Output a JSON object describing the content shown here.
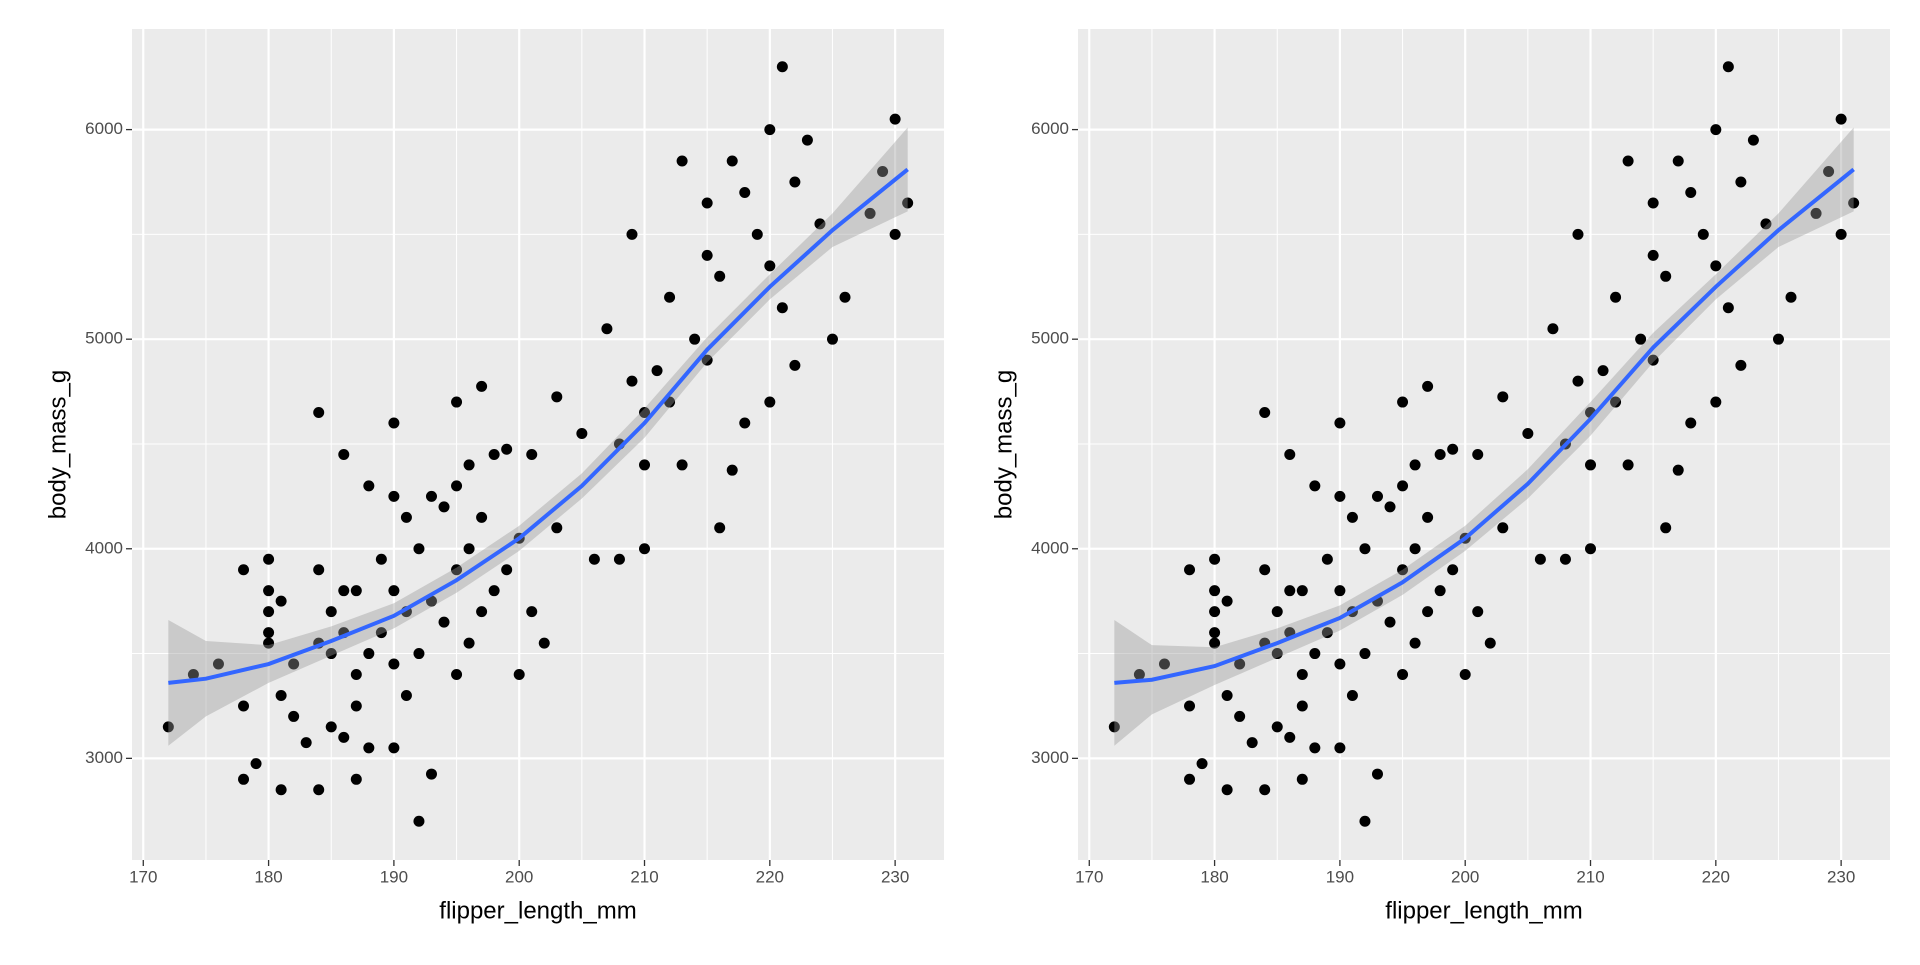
{
  "chart_data": [
    {
      "type": "scatter",
      "xlabel": "flipper_length_mm",
      "ylabel": "body_mass_g",
      "xlim": [
        169.1,
        233.9
      ],
      "ylim": [
        2515,
        6480
      ],
      "xticks": [
        170,
        180,
        190,
        200,
        210,
        220,
        230
      ],
      "yticks": [
        3000,
        4000,
        5000,
        6000
      ],
      "xminor": [
        175,
        185,
        195,
        205,
        215,
        225
      ],
      "yminor": [
        3500,
        4500,
        5500
      ],
      "grid": true,
      "color": "#000000",
      "x": [
        172,
        174,
        176,
        178,
        178,
        178,
        179,
        180,
        180,
        180,
        180,
        180,
        181,
        181,
        181,
        182,
        182,
        183,
        184,
        184,
        184,
        184,
        185,
        185,
        185,
        186,
        186,
        186,
        186,
        187,
        187,
        187,
        187,
        188,
        188,
        188,
        189,
        189,
        190,
        190,
        190,
        190,
        190,
        191,
        191,
        191,
        192,
        192,
        192,
        193,
        193,
        193,
        194,
        194,
        195,
        195,
        195,
        195,
        196,
        196,
        196,
        197,
        197,
        197,
        198,
        198,
        199,
        199,
        200,
        200,
        201,
        201,
        202,
        203,
        203,
        205,
        206,
        207,
        208,
        208,
        209,
        209,
        210,
        210,
        210,
        211,
        212,
        212,
        213,
        213,
        214,
        215,
        215,
        215,
        216,
        216,
        217,
        217,
        218,
        218,
        219,
        220,
        220,
        220,
        221,
        221,
        222,
        222,
        223,
        224,
        225,
        226,
        228,
        229,
        230,
        230,
        231
      ],
      "values": [
        3150,
        3400,
        3450,
        3250,
        3900,
        2900,
        2975,
        3950,
        3800,
        3700,
        3600,
        3550,
        3750,
        3300,
        2850,
        3200,
        3450,
        3075,
        3900,
        3550,
        4650,
        2850,
        3700,
        3500,
        3150,
        4450,
        3800,
        3600,
        3100,
        3800,
        3400,
        3250,
        2900,
        4300,
        3500,
        3050,
        3950,
        3600,
        4600,
        4250,
        3800,
        3450,
        3050,
        4150,
        3700,
        3300,
        4000,
        3500,
        2700,
        4250,
        3750,
        2925,
        4200,
        3650,
        4700,
        4300,
        3900,
        3400,
        4400,
        4000,
        3550,
        4775,
        4150,
        3700,
        4450,
        3800,
        4475,
        3900,
        4050,
        3400,
        4450,
        3700,
        3550,
        4725,
        4100,
        4550,
        3950,
        5050,
        4500,
        3950,
        5500,
        4800,
        4650,
        4400,
        4000,
        4850,
        5200,
        4700,
        5850,
        4400,
        5000,
        5650,
        5400,
        4900,
        5300,
        4100,
        5850,
        4375,
        5700,
        4600,
        5500,
        6000,
        5350,
        4700,
        6300,
        5150,
        5750,
        4875,
        5950,
        5550,
        5000,
        5200,
        5600,
        5800,
        6050,
        5500,
        5650
      ],
      "smooth": {
        "color": "#3366ff",
        "x": [
          172,
          175,
          180,
          185,
          190,
          195,
          200,
          205,
          210,
          215,
          220,
          225,
          231
        ],
        "values": [
          3360,
          3380,
          3450,
          3560,
          3680,
          3850,
          4050,
          4300,
          4600,
          4950,
          5250,
          5520,
          5810
        ],
        "lower": [
          3060,
          3200,
          3360,
          3490,
          3620,
          3790,
          3990,
          4240,
          4530,
          4890,
          5190,
          5440,
          5610
        ],
        "upper": [
          3660,
          3560,
          3540,
          3630,
          3740,
          3910,
          4110,
          4360,
          4670,
          5010,
          5310,
          5600,
          6010
        ]
      }
    },
    {
      "type": "scatter",
      "xlabel": "flipper_length_mm",
      "ylabel": "body_mass_g",
      "xlim": [
        169.1,
        233.9
      ],
      "ylim": [
        2515,
        6480
      ],
      "xticks": [
        170,
        180,
        190,
        200,
        210,
        220,
        230
      ],
      "yticks": [
        3000,
        4000,
        5000,
        6000
      ],
      "xminor": [
        175,
        185,
        195,
        205,
        215,
        225
      ],
      "yminor": [
        3500,
        4500,
        5500
      ],
      "grid": true,
      "color": "#000000",
      "x": [
        172,
        174,
        176,
        178,
        178,
        178,
        179,
        180,
        180,
        180,
        180,
        180,
        181,
        181,
        181,
        182,
        182,
        183,
        184,
        184,
        184,
        184,
        185,
        185,
        185,
        186,
        186,
        186,
        186,
        187,
        187,
        187,
        187,
        188,
        188,
        188,
        189,
        189,
        190,
        190,
        190,
        190,
        190,
        191,
        191,
        191,
        192,
        192,
        192,
        193,
        193,
        193,
        194,
        194,
        195,
        195,
        195,
        195,
        196,
        196,
        196,
        197,
        197,
        197,
        198,
        198,
        199,
        199,
        200,
        200,
        201,
        201,
        202,
        203,
        203,
        205,
        206,
        207,
        208,
        208,
        209,
        209,
        210,
        210,
        210,
        211,
        212,
        212,
        213,
        213,
        214,
        215,
        215,
        215,
        216,
        216,
        217,
        217,
        218,
        218,
        219,
        220,
        220,
        220,
        221,
        221,
        222,
        222,
        223,
        224,
        225,
        226,
        228,
        229,
        230,
        230,
        231
      ],
      "values": [
        3150,
        3400,
        3450,
        3250,
        3900,
        2900,
        2975,
        3950,
        3800,
        3700,
        3600,
        3550,
        3750,
        3300,
        2850,
        3200,
        3450,
        3075,
        3900,
        3550,
        4650,
        2850,
        3700,
        3500,
        3150,
        4450,
        3800,
        3600,
        3100,
        3800,
        3400,
        3250,
        2900,
        4300,
        3500,
        3050,
        3950,
        3600,
        4600,
        4250,
        3800,
        3450,
        3050,
        4150,
        3700,
        3300,
        4000,
        3500,
        2700,
        4250,
        3750,
        2925,
        4200,
        3650,
        4700,
        4300,
        3900,
        3400,
        4400,
        4000,
        3550,
        4775,
        4150,
        3700,
        4450,
        3800,
        4475,
        3900,
        4050,
        3400,
        4450,
        3700,
        3550,
        4725,
        4100,
        4550,
        3950,
        5050,
        4500,
        3950,
        5500,
        4800,
        4650,
        4400,
        4000,
        4850,
        5200,
        4700,
        5850,
        4400,
        5000,
        5650,
        5400,
        4900,
        5300,
        4100,
        5850,
        4375,
        5700,
        4600,
        5500,
        6000,
        5350,
        4700,
        6300,
        5150,
        5750,
        4875,
        5950,
        5550,
        5000,
        5200,
        5600,
        5800,
        6050,
        5500,
        5650
      ],
      "smooth": {
        "color": "#3366ff",
        "x": [
          172,
          175,
          180,
          185,
          190,
          195,
          200,
          205,
          210,
          215,
          220,
          225,
          231
        ],
        "values": [
          3360,
          3375,
          3440,
          3550,
          3670,
          3840,
          4050,
          4310,
          4620,
          4960,
          5250,
          5520,
          5810
        ],
        "lower": [
          3060,
          3210,
          3350,
          3480,
          3610,
          3780,
          3990,
          4240,
          4540,
          4890,
          5190,
          5440,
          5610
        ],
        "upper": [
          3660,
          3540,
          3530,
          3620,
          3730,
          3900,
          4110,
          4380,
          4700,
          5030,
          5310,
          5600,
          6010
        ]
      }
    }
  ]
}
